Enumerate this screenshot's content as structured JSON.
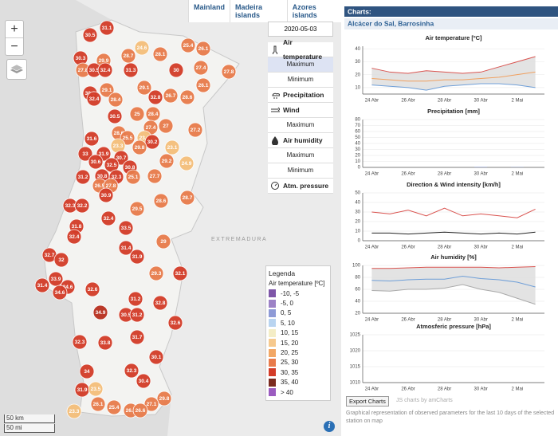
{
  "tabs": [
    "Mainland",
    "Madeira islands",
    "Azores islands"
  ],
  "menu": {
    "date": "2020-05-03",
    "groups": [
      {
        "label": "Air temperature",
        "options": [
          "Maximum",
          "Minimum"
        ]
      },
      {
        "label": "Precipitation",
        "options": []
      },
      {
        "label": "Wind",
        "options": [
          "Maximum"
        ]
      },
      {
        "label": "Air humidity",
        "options": [
          "Maximum",
          "Minimum"
        ]
      },
      {
        "label": "Atm. pressure",
        "options": []
      }
    ]
  },
  "legend": {
    "title": "Legenda",
    "subtitle": "Air temperature [ºC]",
    "items": [
      {
        "label": "-10, -5",
        "color": "#7e56a8"
      },
      {
        "label": "-5, 0",
        "color": "#9c82c6"
      },
      {
        "label": "0, 5",
        "color": "#8e9ad6"
      },
      {
        "label": "5, 10",
        "color": "#b9d4f0"
      },
      {
        "label": "10, 15",
        "color": "#f4edc6"
      },
      {
        "label": "15, 20",
        "color": "#f6c98e"
      },
      {
        "label": "20, 25",
        "color": "#f2a765"
      },
      {
        "label": "25, 30",
        "color": "#e87b4b"
      },
      {
        "label": "30, 35",
        "color": "#d33c28"
      },
      {
        "label": "35, 40",
        "color": "#7a2b1f"
      },
      {
        "label": "> 40",
        "color": "#9b5cc0"
      }
    ]
  },
  "map_labels": [
    "EXTREMADURA"
  ],
  "scale": [
    "50 km",
    "50 mi"
  ],
  "stations": [
    {
      "value": 31.1,
      "color": "#d33c28"
    },
    {
      "value": 30.5,
      "color": "#d33c28"
    },
    {
      "value": 24.6,
      "color": "#f5bf7a"
    },
    {
      "value": 28.1,
      "color": "#e87b4b"
    },
    {
      "value": 25.4,
      "color": "#e87b4b"
    },
    {
      "value": 26.1,
      "color": "#e87b4b"
    },
    {
      "value": 28.7,
      "color": "#e87b4b"
    },
    {
      "value": 30.3,
      "color": "#d33c28"
    },
    {
      "value": 29.9,
      "color": "#e87b4b"
    },
    {
      "value": 27.8,
      "color": "#e87b4b"
    },
    {
      "value": 30.5,
      "color": "#d33c28"
    },
    {
      "value": 32.4,
      "color": "#d33c28"
    },
    {
      "value": 31.3,
      "color": "#d33c28"
    },
    {
      "value": 30,
      "color": "#d33c28"
    },
    {
      "value": 27.4,
      "color": "#e87b4b"
    },
    {
      "value": 27.8,
      "color": "#e87b4b"
    },
    {
      "value": 26.1,
      "color": "#e87b4b"
    },
    {
      "value": 30.2,
      "color": "#d33c28"
    },
    {
      "value": 29.1,
      "color": "#e87b4b"
    },
    {
      "value": 32.4,
      "color": "#d33c28"
    },
    {
      "value": 29.1,
      "color": "#e87b4b"
    },
    {
      "value": 28.4,
      "color": "#e87b4b"
    },
    {
      "value": 32.8,
      "color": "#d33c28"
    },
    {
      "value": 26.7,
      "color": "#e87b4b"
    },
    {
      "value": 28.6,
      "color": "#e87b4b"
    },
    {
      "value": 25,
      "color": "#e87b4b"
    },
    {
      "value": 28.4,
      "color": "#e87b4b"
    },
    {
      "value": 30.5,
      "color": "#d33c28"
    },
    {
      "value": 27.4,
      "color": "#e87b4b"
    },
    {
      "value": 27,
      "color": "#e87b4b"
    },
    {
      "value": 28.6,
      "color": "#e87b4b"
    },
    {
      "value": 25.5,
      "color": "#e87b4b"
    },
    {
      "value": 23.4,
      "color": "#f5bf7a"
    },
    {
      "value": 27.2,
      "color": "#e87b4b"
    },
    {
      "value": 31.6,
      "color": "#d33c28"
    },
    {
      "value": 30.2,
      "color": "#d33c28"
    },
    {
      "value": 23.1,
      "color": "#f5bf7a"
    },
    {
      "value": 23.3,
      "color": "#f5bf7a"
    },
    {
      "value": 29.8,
      "color": "#e87b4b"
    },
    {
      "value": 33,
      "color": "#d33c28"
    },
    {
      "value": 31.9,
      "color": "#d33c28"
    },
    {
      "value": 30.6,
      "color": "#d33c28"
    },
    {
      "value": 30.7,
      "color": "#d33c28"
    },
    {
      "value": 32.5,
      "color": "#d33c28"
    },
    {
      "value": 29.2,
      "color": "#e87b4b"
    },
    {
      "value": 24.9,
      "color": "#f5bf7a"
    },
    {
      "value": 30.8,
      "color": "#d33c28"
    },
    {
      "value": 32.3,
      "color": "#d33c28"
    },
    {
      "value": 30.8,
      "color": "#d33c28"
    },
    {
      "value": 25.1,
      "color": "#e87b4b"
    },
    {
      "value": 27.7,
      "color": "#e87b4b"
    },
    {
      "value": 31.2,
      "color": "#d33c28"
    },
    {
      "value": 26.5,
      "color": "#e87b4b"
    },
    {
      "value": 27.8,
      "color": "#e87b4b"
    },
    {
      "value": 28.6,
      "color": "#e87b4b"
    },
    {
      "value": 28.7,
      "color": "#e87b4b"
    },
    {
      "value": 30.9,
      "color": "#d33c28"
    },
    {
      "value": 32.3,
      "color": "#d33c28"
    },
    {
      "value": 32.2,
      "color": "#d33c28"
    },
    {
      "value": 29.5,
      "color": "#e87b4b"
    },
    {
      "value": 32.4,
      "color": "#d33c28"
    },
    {
      "value": 31.8,
      "color": "#d33c28"
    },
    {
      "value": 33.5,
      "color": "#d33c28"
    },
    {
      "value": 32.4,
      "color": "#d33c28"
    },
    {
      "value": 29,
      "color": "#e87b4b"
    },
    {
      "value": 31.4,
      "color": "#d33c28"
    },
    {
      "value": 32.7,
      "color": "#d33c28"
    },
    {
      "value": 32,
      "color": "#d33c28"
    },
    {
      "value": 31.9,
      "color": "#d33c28"
    },
    {
      "value": 29.3,
      "color": "#e87b4b"
    },
    {
      "value": 32.1,
      "color": "#d33c28"
    },
    {
      "value": 31.4,
      "color": "#d33c28"
    },
    {
      "value": 33.9,
      "color": "#d33c28"
    },
    {
      "value": 34.6,
      "color": "#d33c28"
    },
    {
      "value": 34.6,
      "color": "#d33c28"
    },
    {
      "value": 32.6,
      "color": "#d33c28"
    },
    {
      "value": 34.9,
      "color": "#b8301f"
    },
    {
      "value": 31.2,
      "color": "#d33c28"
    },
    {
      "value": 32.8,
      "color": "#d33c28"
    },
    {
      "value": 30.5,
      "color": "#d33c28"
    },
    {
      "value": 31.2,
      "color": "#d33c28"
    },
    {
      "value": 32.6,
      "color": "#d33c28"
    },
    {
      "value": 32.3,
      "color": "#d33c28"
    },
    {
      "value": 33.8,
      "color": "#d33c28"
    },
    {
      "value": 31.7,
      "color": "#d33c28"
    },
    {
      "value": 30.1,
      "color": "#d33c28"
    },
    {
      "value": 34,
      "color": "#d33c28"
    },
    {
      "value": 32.3,
      "color": "#d33c28"
    },
    {
      "value": 30.4,
      "color": "#d33c28"
    },
    {
      "value": 31.9,
      "color": "#d33c28"
    },
    {
      "value": 23.5,
      "color": "#f5bf7a"
    },
    {
      "value": 29.8,
      "color": "#e87b4b"
    },
    {
      "value": 27.1,
      "color": "#e87b4b"
    },
    {
      "value": 26.1,
      "color": "#e87b4b"
    },
    {
      "value": 25.4,
      "color": "#e87b4b"
    },
    {
      "value": 26.8,
      "color": "#e87b4b"
    },
    {
      "value": 26.6,
      "color": "#e87b4b"
    },
    {
      "value": 23.3,
      "color": "#f5bf7a"
    }
  ],
  "panel": {
    "header": "Charts:",
    "station": "Alcácer do Sal, Barrosinha",
    "xticks": [
      "24 Abr",
      "26 Abr",
      "28 Abr",
      "30 Abr",
      "2 Mai"
    ],
    "charts": [
      {
        "type": "line",
        "title": "Air temperature [ºC]",
        "ylim": [
          5,
          42
        ],
        "yticks": [
          10,
          20,
          30,
          40
        ],
        "range_fill": "#dcdcdc",
        "series": [
          {
            "color": "#d9534f",
            "values": [
              25,
              22,
              21,
              23,
              22,
              21,
              22,
              26,
              30,
              34
            ]
          },
          {
            "color": "#f0a060",
            "values": [
              17,
              16,
              15,
              15,
              16,
              16,
              17,
              18,
              20,
              22
            ]
          },
          {
            "color": "#6f9fd8",
            "values": [
              12,
              11,
              10,
              8,
              11,
              12,
              13,
              13,
              12,
              10
            ]
          }
        ]
      },
      {
        "type": "bar",
        "title": "Precipitation [mm]",
        "ylim": [
          0,
          80
        ],
        "yticks": [
          0,
          10,
          20,
          30,
          40,
          50,
          60,
          70,
          80
        ],
        "series": [
          {
            "color": "#6f88d8",
            "values": [
              0,
              0,
              0,
              0,
              0,
              0,
              0.5,
              0,
              0.3,
              0
            ]
          }
        ]
      },
      {
        "type": "line",
        "title": "Direction & Wind intensity [km/h]",
        "ylim": [
          0,
          50
        ],
        "yticks": [
          0,
          10,
          20,
          30,
          40,
          50
        ],
        "series": [
          {
            "color": "#d9534f",
            "values": [
              30,
              28,
              32,
              26,
              34,
              26,
              28,
              26,
              24,
              33
            ]
          },
          {
            "color": "#222222",
            "values": [
              8,
              8,
              7,
              8,
              9,
              8,
              7,
              8,
              7,
              9
            ]
          }
        ]
      },
      {
        "type": "line",
        "title": "Air humidity [%]",
        "ylim": [
          20,
          100
        ],
        "yticks": [
          20,
          40,
          60,
          80,
          100
        ],
        "range_fill": "#dcdcdc",
        "series": [
          {
            "color": "#d9534f",
            "values": [
              95,
              95,
              96,
              97,
              97,
              97,
              97,
              96,
              97,
              98
            ]
          },
          {
            "color": "#6f9fd8",
            "values": [
              75,
              74,
              76,
              77,
              77,
              82,
              78,
              76,
              72,
              64
            ]
          },
          {
            "color": "#aaaaaa",
            "values": [
              58,
              57,
              60,
              60,
              62,
              68,
              60,
              55,
              45,
              35
            ]
          }
        ]
      },
      {
        "type": "line",
        "title": "Atmosferic pressure [hPa]",
        "ylim": [
          1010,
          1025
        ],
        "yticks": [
          1010,
          1015,
          1020,
          1025
        ],
        "series": []
      }
    ]
  },
  "footer": {
    "export": "Export Charts",
    "credit": "JS charts by amCharts",
    "caption": "Graphical representation of observed parameters for the last 10 days of the selected station on map"
  }
}
